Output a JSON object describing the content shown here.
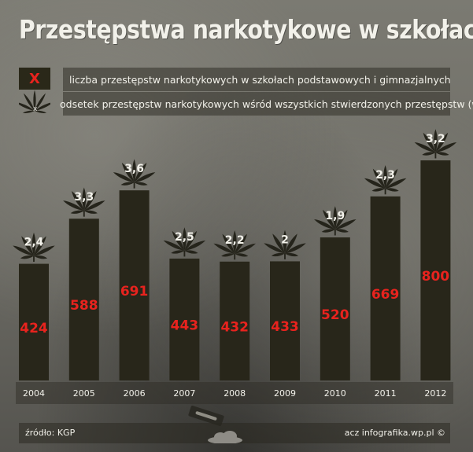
{
  "title": "Przestępstwa narkotykowe w szkołach",
  "legend": {
    "count_marker": "X",
    "count_label": "liczba przestępstw narkotykowych w szkołach podstawowych i gimnazjalnych",
    "pct_marker": "x",
    "pct_label": "odsetek przestępstw narkotykowych wśród wszystkich stwierdzonych przestępstw (w %)"
  },
  "footer": {
    "source": "źródło: KGP",
    "credit": "acz infografika.wp.pl ©"
  },
  "colors": {
    "bar": "#28261a",
    "count_text": "#e8231e",
    "leaf": "#25241b",
    "label_text": "#f2f1ea"
  },
  "chart_data": {
    "type": "bar",
    "title": "Przestępstwa narkotykowe w szkołach",
    "categories": [
      "2004",
      "2005",
      "2006",
      "2007",
      "2008",
      "2009",
      "2010",
      "2011",
      "2012"
    ],
    "series": [
      {
        "name": "liczba przestępstw narkotykowych w szkołach podstawowych i gimnazjalnych",
        "values": [
          424,
          588,
          691,
          443,
          432,
          433,
          520,
          669,
          800
        ],
        "labels": [
          "424",
          "588",
          "691",
          "443",
          "432",
          "433",
          "520",
          "669",
          "800"
        ]
      },
      {
        "name": "odsetek przestępstw narkotykowych wśród wszystkich stwierdzonych przestępstw (w %)",
        "values": [
          2.4,
          3.3,
          3.6,
          2.5,
          2.2,
          2.0,
          1.9,
          2.3,
          3.2
        ],
        "labels": [
          "2,4",
          "3,3",
          "3,6",
          "2,5",
          "2,2",
          "2",
          "1,9",
          "2,3",
          "3,2"
        ]
      }
    ],
    "xlabel": "",
    "ylabel": "",
    "ylim": [
      0,
      800
    ],
    "grid": false,
    "legend_position": "top"
  }
}
